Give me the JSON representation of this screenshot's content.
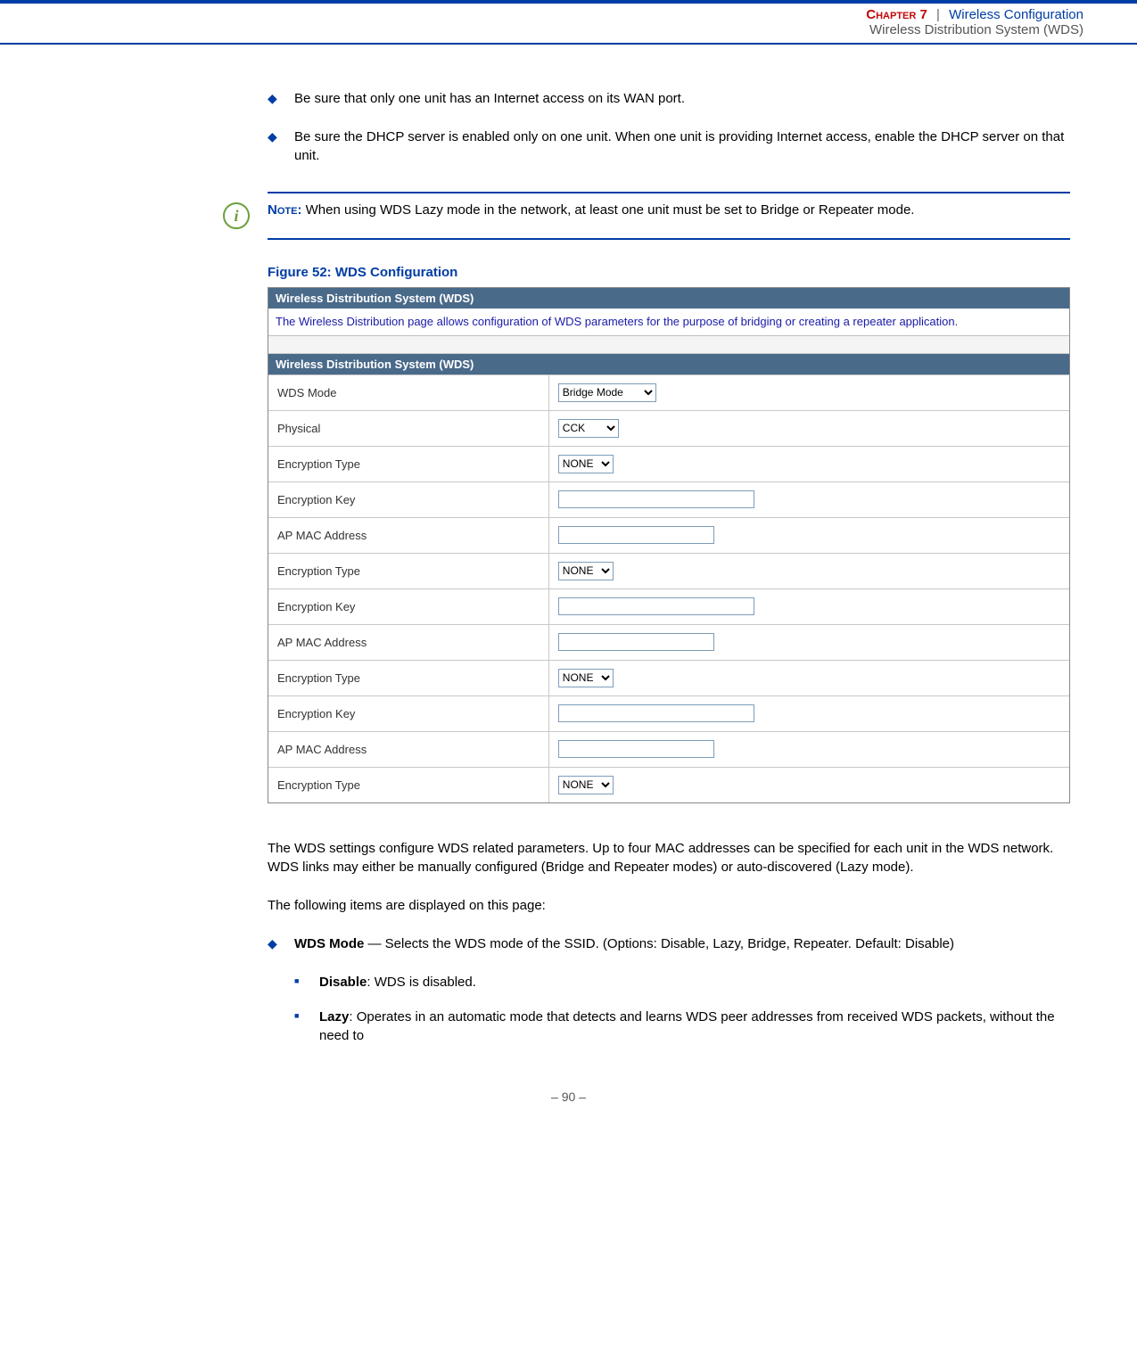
{
  "header": {
    "chapter_label": "Chapter 7",
    "chapter_title": "Wireless Configuration",
    "chapter_sub": "Wireless Distribution System (WDS)",
    "separator": "|"
  },
  "bullets_top": [
    "Be sure that only one unit has an Internet access on its WAN port.",
    "Be sure the DHCP server is enabled only on one unit. When one unit is providing Internet access, enable the DHCP server on that unit."
  ],
  "note": {
    "icon": "i",
    "label": "Note:",
    "text": " When using WDS Lazy mode in the network, at least one unit must be set to Bridge or Repeater mode."
  },
  "figure_caption": "Figure 52:  WDS Configuration",
  "wds_panel": {
    "header1": "Wireless Distribution System (WDS)",
    "description": "The Wireless Distribution page allows configuration of WDS parameters for the purpose of bridging or creating a repeater application.",
    "header2": "Wireless Distribution System (WDS)",
    "rows": [
      {
        "label": "WDS Mode",
        "type": "select",
        "value": "Bridge Mode",
        "cls": "wide"
      },
      {
        "label": "Physical",
        "type": "select",
        "value": "CCK",
        "cls": "mid"
      },
      {
        "label": "Encryption Type",
        "type": "select",
        "value": "NONE",
        "cls": "narrow"
      },
      {
        "label": "Encryption Key",
        "type": "text",
        "value": "",
        "cls": "long"
      },
      {
        "label": "AP MAC Address",
        "type": "text",
        "value": "",
        "cls": "short"
      },
      {
        "label": "Encryption Type",
        "type": "select",
        "value": "NONE",
        "cls": "narrow"
      },
      {
        "label": "Encryption Key",
        "type": "text",
        "value": "",
        "cls": "long"
      },
      {
        "label": "AP MAC Address",
        "type": "text",
        "value": "",
        "cls": "short"
      },
      {
        "label": "Encryption Type",
        "type": "select",
        "value": "NONE",
        "cls": "narrow"
      },
      {
        "label": "Encryption Key",
        "type": "text",
        "value": "",
        "cls": "long"
      },
      {
        "label": "AP MAC Address",
        "type": "text",
        "value": "",
        "cls": "short"
      },
      {
        "label": "Encryption Type",
        "type": "select",
        "value": "NONE",
        "cls": "narrow"
      }
    ]
  },
  "body_paras": [
    "The WDS settings configure WDS related parameters. Up to four MAC addresses can be specified for each unit in the WDS network. WDS links may either be manually configured (Bridge and Repeater modes) or auto-discovered (Lazy mode).",
    "The following items are displayed on this page:"
  ],
  "wds_mode": {
    "bold": "WDS Mode",
    "rest": " — Selects the WDS mode of the SSID. (Options: Disable, Lazy, Bridge, Repeater. Default: Disable)"
  },
  "sub_items": [
    {
      "bold": "Disable",
      "rest": ": WDS is disabled."
    },
    {
      "bold": "Lazy",
      "rest": ": Operates in an automatic mode that detects and learns WDS peer addresses from received WDS packets, without the need to"
    }
  ],
  "footer": "–  90  –",
  "colors": {
    "brand": "#003da5",
    "red": "#c00808",
    "panel_header": "#4a6a8a",
    "note_green": "#6a9f3a"
  }
}
